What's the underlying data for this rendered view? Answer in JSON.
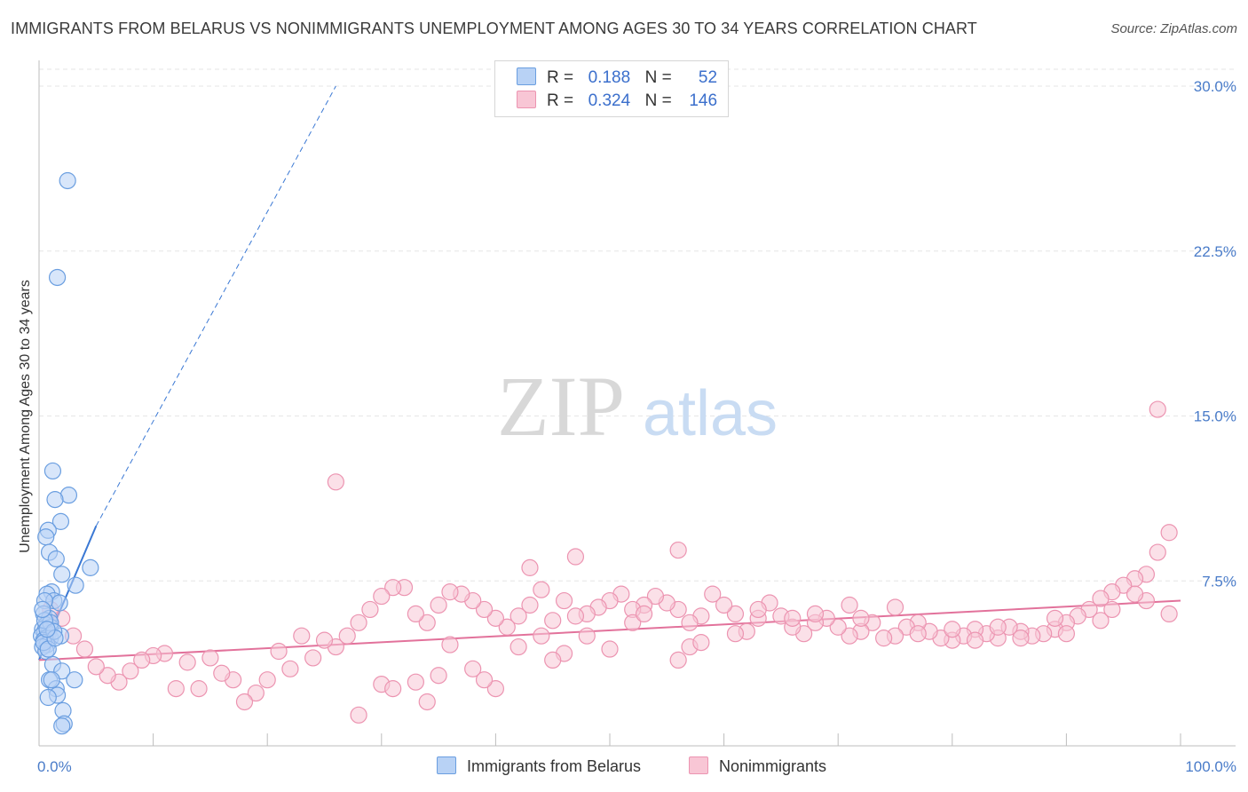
{
  "header": {
    "title": "IMMIGRANTS FROM BELARUS VS NONIMMIGRANTS UNEMPLOYMENT AMONG AGES 30 TO 34 YEARS CORRELATION CHART",
    "source": "Source: ZipAtlas.com"
  },
  "watermark": {
    "zip": "ZIP",
    "atlas": "atlas"
  },
  "legend": {
    "series1": {
      "r_label": "R =",
      "r_value": "0.188",
      "n_label": "N =",
      "n_value": "52"
    },
    "series2": {
      "r_label": "R =",
      "r_value": "0.324",
      "n_label": "N =",
      "n_value": "146"
    }
  },
  "colors": {
    "blue_fill": "#b8d2f5",
    "blue_stroke": "#6a9ee0",
    "blue_line": "#3a78d4",
    "pink_fill": "#f8c6d5",
    "pink_stroke": "#ec94b1",
    "pink_line": "#e2729b",
    "grid": "#e6e6e6",
    "tick_text": "#4a7cc9"
  },
  "chart_data": {
    "type": "scatter",
    "title": "IMMIGRANTS FROM BELARUS VS NONIMMIGRANTS UNEMPLOYMENT AMONG AGES 30 TO 34 YEARS CORRELATION CHART",
    "xlabel": "",
    "ylabel": "Unemployment Among Ages 30 to 34 years",
    "xlim": [
      0,
      100
    ],
    "ylim": [
      0,
      30
    ],
    "x_tick_labels": [
      "0.0%",
      "100.0%"
    ],
    "y_ticks": [
      7.5,
      15.0,
      22.5,
      30.0
    ],
    "y_tick_labels": [
      "7.5%",
      "15.0%",
      "22.5%",
      "30.0%"
    ],
    "grid": true,
    "legend_position": "top-center",
    "series": [
      {
        "name": "Immigrants from Belarus",
        "r": 0.188,
        "n": 52,
        "trend": {
          "x": [
            0,
            5
          ],
          "y": [
            3.9,
            10.0
          ],
          "dashed_to": [
            26,
            30
          ]
        },
        "points": [
          [
            2.5,
            25.7
          ],
          [
            1.6,
            21.3
          ],
          [
            1.2,
            12.5
          ],
          [
            2.6,
            11.4
          ],
          [
            1.4,
            11.2
          ],
          [
            1.9,
            10.2
          ],
          [
            0.8,
            9.8
          ],
          [
            0.6,
            9.5
          ],
          [
            0.9,
            8.8
          ],
          [
            1.5,
            8.5
          ],
          [
            2.0,
            7.8
          ],
          [
            4.5,
            8.1
          ],
          [
            3.2,
            7.3
          ],
          [
            1.1,
            7.0
          ],
          [
            0.7,
            6.9
          ],
          [
            1.3,
            6.6
          ],
          [
            1.8,
            6.5
          ],
          [
            0.5,
            6.6
          ],
          [
            0.4,
            6.0
          ],
          [
            0.9,
            5.8
          ],
          [
            0.6,
            5.5
          ],
          [
            1.0,
            5.4
          ],
          [
            0.3,
            5.3
          ],
          [
            0.5,
            5.2
          ],
          [
            0.8,
            5.1
          ],
          [
            0.2,
            5.0
          ],
          [
            0.6,
            4.9
          ],
          [
            1.0,
            4.9
          ],
          [
            1.9,
            5.0
          ],
          [
            0.4,
            4.8
          ],
          [
            0.7,
            4.6
          ],
          [
            0.3,
            4.5
          ],
          [
            0.6,
            4.3
          ],
          [
            1.2,
            3.7
          ],
          [
            2.0,
            3.4
          ],
          [
            0.9,
            3.0
          ],
          [
            3.1,
            3.0
          ],
          [
            1.5,
            2.6
          ],
          [
            1.6,
            2.3
          ],
          [
            0.8,
            2.2
          ],
          [
            2.1,
            1.6
          ],
          [
            2.2,
            1.0
          ],
          [
            2.0,
            0.9
          ],
          [
            1.0,
            5.6
          ],
          [
            0.5,
            5.7
          ],
          [
            1.3,
            5.2
          ],
          [
            0.4,
            4.7
          ],
          [
            0.8,
            4.4
          ],
          [
            1.1,
            3.0
          ],
          [
            0.3,
            6.2
          ],
          [
            1.4,
            4.9
          ],
          [
            0.7,
            5.3
          ]
        ]
      },
      {
        "name": "Nonimmigrants",
        "r": 0.324,
        "n": 146,
        "trend": {
          "x": [
            0,
            100
          ],
          "y": [
            3.9,
            6.6
          ]
        },
        "points": [
          [
            26,
            12.0
          ],
          [
            56,
            8.9
          ],
          [
            47,
            8.6
          ],
          [
            43,
            8.1
          ],
          [
            98,
            15.3
          ],
          [
            99,
            9.7
          ],
          [
            98,
            8.8
          ],
          [
            97,
            7.8
          ],
          [
            96,
            7.6
          ],
          [
            95,
            7.3
          ],
          [
            94,
            7.0
          ],
          [
            93,
            6.7
          ],
          [
            92,
            6.2
          ],
          [
            91,
            5.9
          ],
          [
            90,
            5.6
          ],
          [
            89,
            5.3
          ],
          [
            88,
            5.1
          ],
          [
            87,
            5.0
          ],
          [
            86,
            5.2
          ],
          [
            85,
            5.4
          ],
          [
            84,
            4.9
          ],
          [
            83,
            5.1
          ],
          [
            82,
            5.3
          ],
          [
            81,
            5.0
          ],
          [
            80,
            4.8
          ],
          [
            79,
            4.9
          ],
          [
            78,
            5.2
          ],
          [
            77,
            5.6
          ],
          [
            76,
            5.4
          ],
          [
            75,
            5.0
          ],
          [
            74,
            4.9
          ],
          [
            73,
            5.6
          ],
          [
            72,
            5.2
          ],
          [
            71,
            5.0
          ],
          [
            70,
            5.4
          ],
          [
            69,
            5.8
          ],
          [
            68,
            5.6
          ],
          [
            67,
            5.1
          ],
          [
            66,
            5.4
          ],
          [
            65,
            5.9
          ],
          [
            64,
            6.5
          ],
          [
            63,
            5.8
          ],
          [
            62,
            5.2
          ],
          [
            61,
            6.0
          ],
          [
            60,
            6.4
          ],
          [
            59,
            6.9
          ],
          [
            58,
            5.9
          ],
          [
            57,
            5.6
          ],
          [
            56,
            6.2
          ],
          [
            55,
            6.5
          ],
          [
            54,
            6.8
          ],
          [
            53,
            6.4
          ],
          [
            52,
            6.2
          ],
          [
            51,
            6.9
          ],
          [
            50,
            6.6
          ],
          [
            49,
            6.3
          ],
          [
            48,
            6.0
          ],
          [
            47,
            5.9
          ],
          [
            46,
            6.6
          ],
          [
            45,
            5.7
          ],
          [
            44,
            7.1
          ],
          [
            43,
            6.4
          ],
          [
            42,
            5.9
          ],
          [
            41,
            5.4
          ],
          [
            40,
            5.8
          ],
          [
            39,
            6.2
          ],
          [
            38,
            6.6
          ],
          [
            37,
            6.9
          ],
          [
            36,
            7.0
          ],
          [
            35,
            6.4
          ],
          [
            34,
            5.6
          ],
          [
            33,
            6.0
          ],
          [
            32,
            7.2
          ],
          [
            31,
            7.2
          ],
          [
            30,
            6.8
          ],
          [
            29,
            6.2
          ],
          [
            28,
            5.6
          ],
          [
            27,
            5.0
          ],
          [
            26,
            4.5
          ],
          [
            25,
            4.8
          ],
          [
            24,
            4.0
          ],
          [
            23,
            5.0
          ],
          [
            22,
            3.5
          ],
          [
            21,
            4.3
          ],
          [
            20,
            3.0
          ],
          [
            19,
            2.4
          ],
          [
            18,
            2.0
          ],
          [
            17,
            3.0
          ],
          [
            16,
            3.3
          ],
          [
            15,
            4.0
          ],
          [
            14,
            2.6
          ],
          [
            13,
            3.8
          ],
          [
            12,
            2.6
          ],
          [
            11,
            4.2
          ],
          [
            10,
            4.1
          ],
          [
            9,
            3.9
          ],
          [
            8,
            3.4
          ],
          [
            7,
            2.9
          ],
          [
            6,
            3.2
          ],
          [
            5,
            3.6
          ],
          [
            4,
            4.4
          ],
          [
            3,
            5.0
          ],
          [
            2,
            5.8
          ],
          [
            1,
            6.2
          ],
          [
            36,
            4.6
          ],
          [
            42,
            4.5
          ],
          [
            48,
            5.0
          ],
          [
            52,
            5.6
          ],
          [
            57,
            4.5
          ],
          [
            61,
            5.1
          ],
          [
            66,
            5.8
          ],
          [
            71,
            6.4
          ],
          [
            75,
            6.3
          ],
          [
            80,
            5.3
          ],
          [
            84,
            5.4
          ],
          [
            89,
            5.8
          ],
          [
            93,
            5.7
          ],
          [
            97,
            6.6
          ],
          [
            56,
            3.9
          ],
          [
            46,
            4.2
          ],
          [
            38,
            3.5
          ],
          [
            33,
            2.9
          ],
          [
            28,
            1.4
          ],
          [
            30,
            2.8
          ],
          [
            31,
            2.6
          ],
          [
            35,
            3.2
          ],
          [
            40,
            2.6
          ],
          [
            44,
            5.0
          ],
          [
            50,
            4.4
          ],
          [
            53,
            6.0
          ],
          [
            58,
            4.7
          ],
          [
            63,
            6.2
          ],
          [
            68,
            6.0
          ],
          [
            72,
            5.8
          ],
          [
            77,
            5.1
          ],
          [
            82,
            4.8
          ],
          [
            86,
            4.9
          ],
          [
            90,
            5.1
          ],
          [
            94,
            6.2
          ],
          [
            96,
            6.9
          ],
          [
            99,
            6.0
          ],
          [
            45,
            3.9
          ],
          [
            39,
            3.0
          ],
          [
            34,
            2.0
          ]
        ]
      }
    ],
    "bottom_legend": [
      "Immigrants from Belarus",
      "Nonimmigrants"
    ]
  }
}
